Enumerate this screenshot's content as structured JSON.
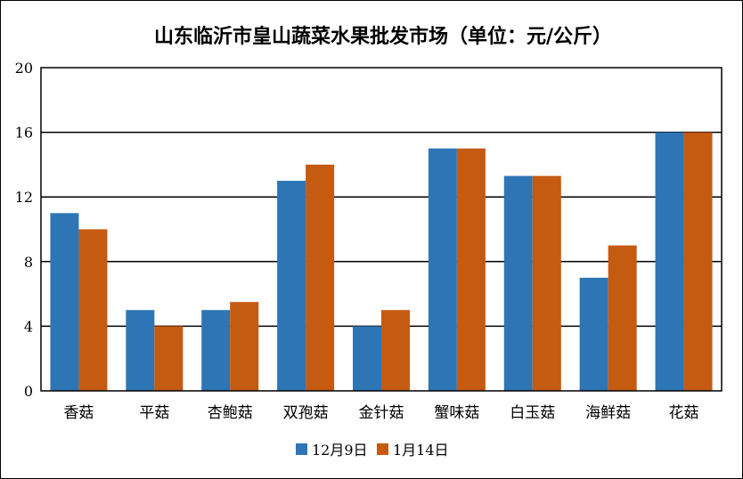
{
  "chart_data": {
    "type": "bar",
    "title": "山东临沂市皇山蔬菜水果批发市场（单位：元/公斤）",
    "xlabel": "",
    "ylabel": "",
    "ylim": [
      0,
      20
    ],
    "yticks": [
      "0",
      "4",
      "8",
      "12",
      "16",
      "20"
    ],
    "grid": true,
    "legend_position": "bottom",
    "categories": [
      "香菇",
      "平菇",
      "杏鲍菇",
      "双孢菇",
      "金针菇",
      "蟹味菇",
      "白玉菇",
      "海鲜菇",
      "花菇"
    ],
    "series": [
      {
        "name": "12月9日",
        "color": "#2E75B6",
        "values": [
          11,
          5,
          5,
          13,
          4,
          15,
          13.3,
          7,
          16
        ]
      },
      {
        "name": "1月14日",
        "color": "#C55A11",
        "values": [
          10,
          4,
          5.5,
          14,
          5,
          15,
          13.3,
          9,
          16
        ]
      }
    ]
  }
}
